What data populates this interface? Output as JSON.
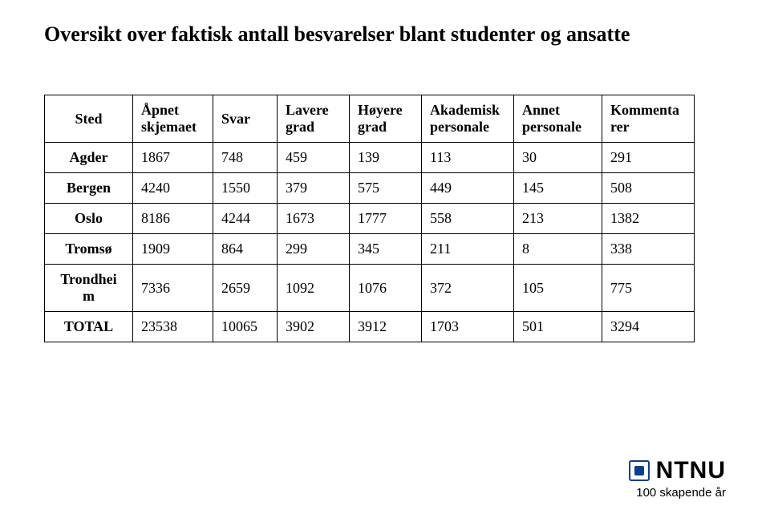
{
  "title": "Oversikt over faktisk antall besvarelser blant studenter og ansatte",
  "table": {
    "columns": [
      {
        "key": "sted",
        "line1": "",
        "line2": "Sted",
        "class": "col-sted"
      },
      {
        "key": "apnet",
        "line1": "Åpnet",
        "line2": "skjemaet",
        "class": "col-apnet"
      },
      {
        "key": "svar",
        "line1": "",
        "line2": "Svar",
        "class": "col-svar"
      },
      {
        "key": "lavere",
        "line1": "Lavere",
        "line2": "grad",
        "class": "col-lavere"
      },
      {
        "key": "hoyere",
        "line1": "Høyere",
        "line2": "grad",
        "class": "col-hoyere"
      },
      {
        "key": "akad",
        "line1": "Akademisk",
        "line2": "personale",
        "class": "col-akad"
      },
      {
        "key": "annet",
        "line1": "Annet",
        "line2": "personale",
        "class": "col-annet"
      },
      {
        "key": "komm",
        "line1": "Kommenta",
        "line2": "rer",
        "class": "col-komm"
      }
    ],
    "rows": [
      {
        "sted": "Agder",
        "apnet": "1867",
        "svar": "748",
        "lavere": "459",
        "hoyere": "139",
        "akad": "113",
        "annet": "30",
        "komm": "291"
      },
      {
        "sted": "Bergen",
        "apnet": "4240",
        "svar": "1550",
        "lavere": "379",
        "hoyere": "575",
        "akad": "449",
        "annet": "145",
        "komm": "508"
      },
      {
        "sted": "Oslo",
        "apnet": "8186",
        "svar": "4244",
        "lavere": "1673",
        "hoyere": "1777",
        "akad": "558",
        "annet": "213",
        "komm": "1382"
      },
      {
        "sted": "Tromsø",
        "apnet": "1909",
        "svar": "864",
        "lavere": "299",
        "hoyere": "345",
        "akad": "211",
        "annet": "8",
        "komm": "338"
      },
      {
        "sted": "Trondhei m",
        "apnet": "7336",
        "svar": "2659",
        "lavere": "1092",
        "hoyere": "1076",
        "akad": "372",
        "annet": "105",
        "komm": "775"
      },
      {
        "sted": "TOTAL",
        "apnet": "23538",
        "svar": "10065",
        "lavere": "3902",
        "hoyere": "3912",
        "akad": "1703",
        "annet": "501",
        "komm": "3294"
      }
    ],
    "border_color": "#000000",
    "font_family": "Times New Roman",
    "header_fontsize": 18,
    "cell_fontsize": 18
  },
  "logo": {
    "brand": "NTNU",
    "tagline": "100 skapende år",
    "mark_color": "#0b3e8f"
  }
}
